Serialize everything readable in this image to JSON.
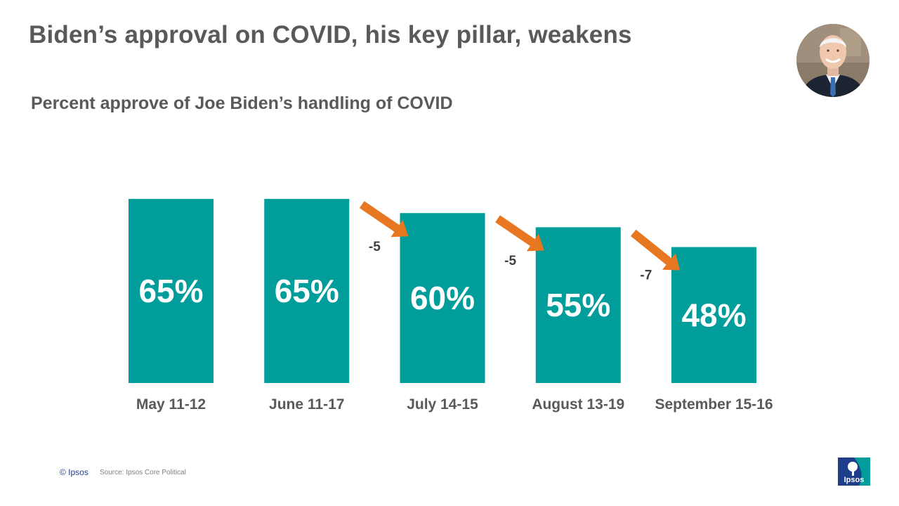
{
  "header": {
    "title": "Biden’s approval on COVID, his key pillar, weakens"
  },
  "chart_data": {
    "type": "bar",
    "title": "Percent approve of Joe Biden’s handling of COVID",
    "categories": [
      "May 11-12",
      "June 11-17",
      "July 14-15",
      "August 13-19",
      "September 15-16"
    ],
    "values": [
      65,
      65,
      60,
      55,
      48
    ],
    "value_labels": [
      "65%",
      "65%",
      "60%",
      "55%",
      "48%"
    ],
    "unit": "%",
    "changes": [
      {
        "between": [
          "June 11-17",
          "July 14-15"
        ],
        "label": "-5"
      },
      {
        "between": [
          "July 14-15",
          "August 13-19"
        ],
        "label": "-5"
      },
      {
        "between": [
          "August 13-19",
          "September 15-16"
        ],
        "label": "-7"
      }
    ],
    "bar_color": "#009d9a",
    "arrow_color": "#e87722",
    "ylim": [
      0,
      100
    ],
    "grid": false
  },
  "footer": {
    "copyright": "© Ipsos",
    "source": "Source: Ipsos Core Political",
    "logo_text": "Ipsos"
  }
}
